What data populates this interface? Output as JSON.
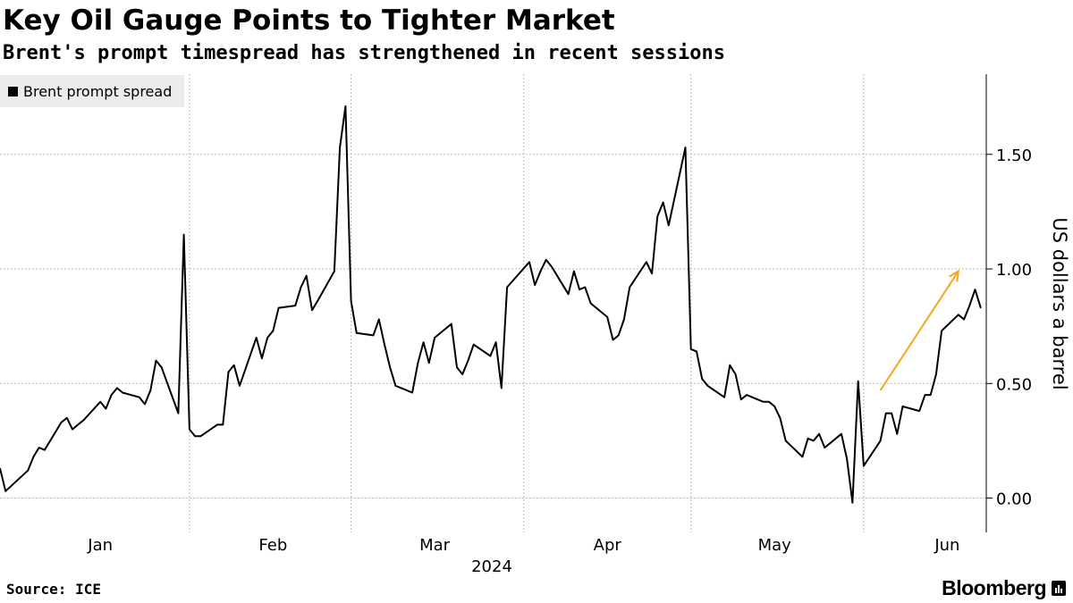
{
  "header": {
    "title": "Key Oil Gauge Points to Tighter Market",
    "subtitle": "Brent's prompt timespread has strengthened in recent sessions"
  },
  "legend": {
    "label": "Brent prompt spread",
    "color": "#000000"
  },
  "footer": {
    "source": "Source: ICE",
    "brand": "Bloomberg"
  },
  "colors": {
    "line": "#000000",
    "arrow": "#f5a623",
    "grid": "#bbbbbb"
  },
  "chart_data": {
    "type": "line",
    "title": "Key Oil Gauge Points to Tighter Market",
    "subtitle": "Brent's prompt timespread has strengthened in recent sessions",
    "ylabel": "US dollars a barrel",
    "xlabel": "2024",
    "ylim": [
      -0.15,
      1.85
    ],
    "yticks": [
      0.0,
      0.5,
      1.0,
      1.5
    ],
    "ytick_labels": [
      "0.00",
      "0.50",
      "1.00",
      "1.50"
    ],
    "y_axis_side": "right",
    "grid": true,
    "legend_position": "top-left",
    "month_labels": [
      "Jan",
      "Feb",
      "Mar",
      "Apr",
      "May",
      "Jun"
    ],
    "month_label_dates": [
      "2024-01-15",
      "2024-02-15",
      "2024-03-15",
      "2024-04-15",
      "2024-05-15",
      "2024-06-15"
    ],
    "vertical_gridline_dates": [
      "2024-01-31",
      "2024-02-29",
      "2024-03-31",
      "2024-04-30",
      "2024-05-31"
    ],
    "xlim": [
      "2023-12-28",
      "2024-06-22"
    ],
    "series": [
      {
        "name": "Brent prompt spread",
        "points": [
          [
            "2023-12-28",
            0.13
          ],
          [
            "2023-12-29",
            0.03
          ],
          [
            "2024-01-02",
            0.12
          ],
          [
            "2024-01-03",
            0.18
          ],
          [
            "2024-01-04",
            0.22
          ],
          [
            "2024-01-05",
            0.21
          ],
          [
            "2024-01-08",
            0.33
          ],
          [
            "2024-01-09",
            0.35
          ],
          [
            "2024-01-10",
            0.3
          ],
          [
            "2024-01-11",
            0.32
          ],
          [
            "2024-01-12",
            0.34
          ],
          [
            "2024-01-15",
            0.42
          ],
          [
            "2024-01-16",
            0.39
          ],
          [
            "2024-01-17",
            0.45
          ],
          [
            "2024-01-18",
            0.48
          ],
          [
            "2024-01-19",
            0.46
          ],
          [
            "2024-01-22",
            0.44
          ],
          [
            "2024-01-23",
            0.41
          ],
          [
            "2024-01-24",
            0.47
          ],
          [
            "2024-01-25",
            0.6
          ],
          [
            "2024-01-26",
            0.57
          ],
          [
            "2024-01-29",
            0.37
          ],
          [
            "2024-01-30",
            1.15
          ],
          [
            "2024-01-31",
            0.3
          ],
          [
            "2024-02-01",
            0.27
          ],
          [
            "2024-02-02",
            0.27
          ],
          [
            "2024-02-05",
            0.32
          ],
          [
            "2024-02-06",
            0.32
          ],
          [
            "2024-02-07",
            0.55
          ],
          [
            "2024-02-08",
            0.58
          ],
          [
            "2024-02-09",
            0.49
          ],
          [
            "2024-02-12",
            0.7
          ],
          [
            "2024-02-13",
            0.61
          ],
          [
            "2024-02-14",
            0.7
          ],
          [
            "2024-02-15",
            0.73
          ],
          [
            "2024-02-16",
            0.83
          ],
          [
            "2024-02-19",
            0.84
          ],
          [
            "2024-02-20",
            0.92
          ],
          [
            "2024-02-21",
            0.97
          ],
          [
            "2024-02-22",
            0.82
          ],
          [
            "2024-02-23",
            0.86
          ],
          [
            "2024-02-26",
            0.99
          ],
          [
            "2024-02-27",
            1.53
          ],
          [
            "2024-02-28",
            1.71
          ],
          [
            "2024-02-29",
            0.86
          ],
          [
            "2024-03-01",
            0.72
          ],
          [
            "2024-03-04",
            0.71
          ],
          [
            "2024-03-05",
            0.78
          ],
          [
            "2024-03-06",
            0.67
          ],
          [
            "2024-03-07",
            0.57
          ],
          [
            "2024-03-08",
            0.49
          ],
          [
            "2024-03-11",
            0.46
          ],
          [
            "2024-03-12",
            0.59
          ],
          [
            "2024-03-13",
            0.68
          ],
          [
            "2024-03-14",
            0.59
          ],
          [
            "2024-03-15",
            0.7
          ],
          [
            "2024-03-18",
            0.76
          ],
          [
            "2024-03-19",
            0.57
          ],
          [
            "2024-03-20",
            0.54
          ],
          [
            "2024-03-21",
            0.6
          ],
          [
            "2024-03-22",
            0.67
          ],
          [
            "2024-03-25",
            0.62
          ],
          [
            "2024-03-26",
            0.68
          ],
          [
            "2024-03-27",
            0.48
          ],
          [
            "2024-03-28",
            0.92
          ],
          [
            "2024-04-01",
            1.03
          ],
          [
            "2024-04-02",
            0.93
          ],
          [
            "2024-04-03",
            0.99
          ],
          [
            "2024-04-04",
            1.04
          ],
          [
            "2024-04-05",
            1.01
          ],
          [
            "2024-04-08",
            0.89
          ],
          [
            "2024-04-09",
            0.99
          ],
          [
            "2024-04-10",
            0.91
          ],
          [
            "2024-04-11",
            0.92
          ],
          [
            "2024-04-12",
            0.85
          ],
          [
            "2024-04-15",
            0.79
          ],
          [
            "2024-04-16",
            0.69
          ],
          [
            "2024-04-17",
            0.71
          ],
          [
            "2024-04-18",
            0.78
          ],
          [
            "2024-04-19",
            0.92
          ],
          [
            "2024-04-22",
            1.03
          ],
          [
            "2024-04-23",
            0.98
          ],
          [
            "2024-04-24",
            1.23
          ],
          [
            "2024-04-25",
            1.29
          ],
          [
            "2024-04-26",
            1.19
          ],
          [
            "2024-04-29",
            1.53
          ],
          [
            "2024-04-30",
            0.65
          ],
          [
            "2024-05-01",
            0.64
          ],
          [
            "2024-05-02",
            0.52
          ],
          [
            "2024-05-03",
            0.49
          ],
          [
            "2024-05-06",
            0.44
          ],
          [
            "2024-05-07",
            0.58
          ],
          [
            "2024-05-08",
            0.54
          ],
          [
            "2024-05-09",
            0.43
          ],
          [
            "2024-05-10",
            0.45
          ],
          [
            "2024-05-13",
            0.42
          ],
          [
            "2024-05-14",
            0.42
          ],
          [
            "2024-05-15",
            0.4
          ],
          [
            "2024-05-16",
            0.35
          ],
          [
            "2024-05-17",
            0.25
          ],
          [
            "2024-05-20",
            0.18
          ],
          [
            "2024-05-21",
            0.26
          ],
          [
            "2024-05-22",
            0.25
          ],
          [
            "2024-05-23",
            0.28
          ],
          [
            "2024-05-24",
            0.22
          ],
          [
            "2024-05-27",
            0.28
          ],
          [
            "2024-05-28",
            0.17
          ],
          [
            "2024-05-29",
            -0.02
          ],
          [
            "2024-05-30",
            0.51
          ],
          [
            "2024-05-31",
            0.14
          ],
          [
            "2024-06-03",
            0.25
          ],
          [
            "2024-06-04",
            0.37
          ],
          [
            "2024-06-05",
            0.37
          ],
          [
            "2024-06-06",
            0.28
          ],
          [
            "2024-06-07",
            0.4
          ],
          [
            "2024-06-10",
            0.38
          ],
          [
            "2024-06-11",
            0.45
          ],
          [
            "2024-06-12",
            0.45
          ],
          [
            "2024-06-13",
            0.54
          ],
          [
            "2024-06-14",
            0.73
          ],
          [
            "2024-06-17",
            0.8
          ],
          [
            "2024-06-18",
            0.78
          ],
          [
            "2024-06-19",
            0.84
          ],
          [
            "2024-06-20",
            0.91
          ],
          [
            "2024-06-21",
            0.83
          ]
        ]
      }
    ],
    "annotation_arrow": {
      "from": [
        "2024-06-03",
        0.47
      ],
      "to": [
        "2024-06-17",
        0.99
      ],
      "color": "#f5a623"
    }
  }
}
